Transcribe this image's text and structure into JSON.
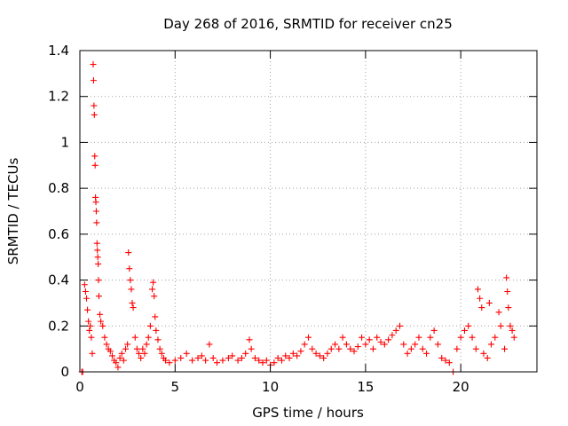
{
  "chart_data": {
    "type": "scatter",
    "title": "Day 268 of 2016, SRMTID for receiver cn25",
    "xlabel": "GPS time / hours",
    "ylabel": "SRMTID / TECUs",
    "xlim": [
      0,
      24
    ],
    "ylim": [
      0,
      1.4
    ],
    "xticks": [
      0,
      5,
      10,
      15,
      20
    ],
    "xtick_labels": [
      "0",
      "5",
      "10",
      "15",
      "20"
    ],
    "yticks": [
      0,
      0.2,
      0.4,
      0.6,
      0.8,
      1,
      1.2,
      1.4
    ],
    "ytick_labels": [
      "0",
      "0.2",
      "0.4",
      "0.6",
      "0.8",
      "1",
      "1.2",
      "1.4"
    ],
    "grid": true,
    "marker": "+",
    "series": [
      {
        "name": "SRMTID",
        "color": "#ff0000",
        "points": [
          [
            0.1,
            0.0
          ],
          [
            0.15,
            0.0
          ],
          [
            0.25,
            0.38
          ],
          [
            0.3,
            0.35
          ],
          [
            0.35,
            0.32
          ],
          [
            0.4,
            0.27
          ],
          [
            0.45,
            0.22
          ],
          [
            0.5,
            0.18
          ],
          [
            0.55,
            0.2
          ],
          [
            0.6,
            0.15
          ],
          [
            0.65,
            0.08
          ],
          [
            0.7,
            1.34
          ],
          [
            0.72,
            1.27
          ],
          [
            0.74,
            1.16
          ],
          [
            0.76,
            1.12
          ],
          [
            0.78,
            0.94
          ],
          [
            0.8,
            0.9
          ],
          [
            0.82,
            0.76
          ],
          [
            0.84,
            0.74
          ],
          [
            0.86,
            0.7
          ],
          [
            0.88,
            0.65
          ],
          [
            0.9,
            0.56
          ],
          [
            0.92,
            0.53
          ],
          [
            0.94,
            0.5
          ],
          [
            0.96,
            0.47
          ],
          [
            0.98,
            0.4
          ],
          [
            1.0,
            0.33
          ],
          [
            1.05,
            0.25
          ],
          [
            1.1,
            0.22
          ],
          [
            1.2,
            0.2
          ],
          [
            1.3,
            0.15
          ],
          [
            1.4,
            0.12
          ],
          [
            1.5,
            0.1
          ],
          [
            1.6,
            0.09
          ],
          [
            1.7,
            0.07
          ],
          [
            1.8,
            0.05
          ],
          [
            1.9,
            0.04
          ],
          [
            2.0,
            0.02
          ],
          [
            2.1,
            0.06
          ],
          [
            2.2,
            0.08
          ],
          [
            2.3,
            0.05
          ],
          [
            2.4,
            0.1
          ],
          [
            2.5,
            0.12
          ],
          [
            2.55,
            0.52
          ],
          [
            2.6,
            0.45
          ],
          [
            2.65,
            0.4
          ],
          [
            2.7,
            0.36
          ],
          [
            2.75,
            0.3
          ],
          [
            2.8,
            0.28
          ],
          [
            2.9,
            0.15
          ],
          [
            3.0,
            0.1
          ],
          [
            3.1,
            0.08
          ],
          [
            3.2,
            0.06
          ],
          [
            3.3,
            0.1
          ],
          [
            3.4,
            0.08
          ],
          [
            3.5,
            0.12
          ],
          [
            3.6,
            0.15
          ],
          [
            3.7,
            0.2
          ],
          [
            3.8,
            0.36
          ],
          [
            3.85,
            0.39
          ],
          [
            3.9,
            0.33
          ],
          [
            3.95,
            0.24
          ],
          [
            4.0,
            0.18
          ],
          [
            4.1,
            0.14
          ],
          [
            4.2,
            0.1
          ],
          [
            4.3,
            0.08
          ],
          [
            4.4,
            0.06
          ],
          [
            4.5,
            0.05
          ],
          [
            4.7,
            0.04
          ],
          [
            5.0,
            0.05
          ],
          [
            5.3,
            0.06
          ],
          [
            5.6,
            0.08
          ],
          [
            5.9,
            0.05
          ],
          [
            6.2,
            0.06
          ],
          [
            6.4,
            0.07
          ],
          [
            6.6,
            0.05
          ],
          [
            6.8,
            0.12
          ],
          [
            7.0,
            0.06
          ],
          [
            7.2,
            0.04
          ],
          [
            7.5,
            0.05
          ],
          [
            7.8,
            0.06
          ],
          [
            8.0,
            0.07
          ],
          [
            8.3,
            0.05
          ],
          [
            8.5,
            0.06
          ],
          [
            8.7,
            0.08
          ],
          [
            8.9,
            0.14
          ],
          [
            9.0,
            0.1
          ],
          [
            9.2,
            0.06
          ],
          [
            9.4,
            0.05
          ],
          [
            9.6,
            0.04
          ],
          [
            9.8,
            0.05
          ],
          [
            10.0,
            0.03
          ],
          [
            10.2,
            0.04
          ],
          [
            10.4,
            0.06
          ],
          [
            10.6,
            0.05
          ],
          [
            10.8,
            0.07
          ],
          [
            11.0,
            0.06
          ],
          [
            11.2,
            0.08
          ],
          [
            11.4,
            0.07
          ],
          [
            11.6,
            0.09
          ],
          [
            11.8,
            0.12
          ],
          [
            12.0,
            0.15
          ],
          [
            12.2,
            0.1
          ],
          [
            12.4,
            0.08
          ],
          [
            12.6,
            0.07
          ],
          [
            12.8,
            0.06
          ],
          [
            13.0,
            0.08
          ],
          [
            13.2,
            0.1
          ],
          [
            13.4,
            0.12
          ],
          [
            13.6,
            0.1
          ],
          [
            13.8,
            0.15
          ],
          [
            14.0,
            0.12
          ],
          [
            14.2,
            0.1
          ],
          [
            14.4,
            0.09
          ],
          [
            14.6,
            0.11
          ],
          [
            14.8,
            0.15
          ],
          [
            15.0,
            0.12
          ],
          [
            15.2,
            0.14
          ],
          [
            15.4,
            0.1
          ],
          [
            15.6,
            0.15
          ],
          [
            15.8,
            0.13
          ],
          [
            16.0,
            0.12
          ],
          [
            16.2,
            0.14
          ],
          [
            16.4,
            0.16
          ],
          [
            16.6,
            0.18
          ],
          [
            16.8,
            0.2
          ],
          [
            17.0,
            0.12
          ],
          [
            17.2,
            0.08
          ],
          [
            17.4,
            0.1
          ],
          [
            17.6,
            0.12
          ],
          [
            17.8,
            0.15
          ],
          [
            18.0,
            0.1
          ],
          [
            18.2,
            0.08
          ],
          [
            18.4,
            0.15
          ],
          [
            18.6,
            0.18
          ],
          [
            18.8,
            0.12
          ],
          [
            19.0,
            0.06
          ],
          [
            19.2,
            0.05
          ],
          [
            19.4,
            0.04
          ],
          [
            19.6,
            0.0
          ],
          [
            19.8,
            0.1
          ],
          [
            20.0,
            0.15
          ],
          [
            20.2,
            0.18
          ],
          [
            20.4,
            0.2
          ],
          [
            20.6,
            0.15
          ],
          [
            20.8,
            0.1
          ],
          [
            20.9,
            0.36
          ],
          [
            21.0,
            0.32
          ],
          [
            21.1,
            0.28
          ],
          [
            21.2,
            0.08
          ],
          [
            21.4,
            0.06
          ],
          [
            21.5,
            0.3
          ],
          [
            21.6,
            0.12
          ],
          [
            21.8,
            0.15
          ],
          [
            22.0,
            0.26
          ],
          [
            22.1,
            0.2
          ],
          [
            22.3,
            0.1
          ],
          [
            22.4,
            0.41
          ],
          [
            22.45,
            0.35
          ],
          [
            22.5,
            0.28
          ],
          [
            22.6,
            0.2
          ],
          [
            22.7,
            0.18
          ],
          [
            22.8,
            0.15
          ]
        ]
      }
    ]
  }
}
